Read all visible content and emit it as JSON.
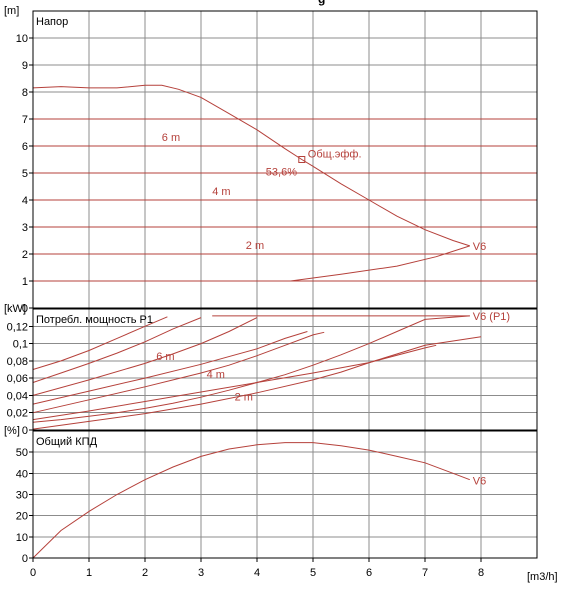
{
  "page": {
    "top_text": "g",
    "x_unit": "[m3/h]",
    "x_ticks": [
      "0",
      "1",
      "2",
      "3",
      "4",
      "5",
      "6",
      "7",
      "8"
    ]
  },
  "colors": {
    "curve": "#b5413b",
    "curve_text": "#b5413b",
    "grid": "#8c8c8c",
    "axis": "#000000",
    "text": "#000000",
    "background": "#ffffff"
  },
  "chart_data": [
    {
      "type": "line",
      "title": "Напор",
      "ylabel": "[m]",
      "xlim": [
        0,
        9
      ],
      "ylim": [
        0,
        11
      ],
      "yticks": [
        "0",
        "1",
        "2",
        "3",
        "4",
        "5",
        "6",
        "7",
        "8",
        "9",
        "10"
      ],
      "series": [
        {
          "name": "V6",
          "x": [
            0,
            0.5,
            1.0,
            1.5,
            2.0,
            2.3,
            2.6,
            3.0,
            3.5,
            4.0,
            4.5,
            4.8,
            5.0,
            5.5,
            6.0,
            6.5,
            7.0,
            7.5,
            7.8
          ],
          "y": [
            8.15,
            8.2,
            8.15,
            8.15,
            8.25,
            8.25,
            8.1,
            7.8,
            7.2,
            6.6,
            5.9,
            5.5,
            5.25,
            4.6,
            4.0,
            3.4,
            2.9,
            2.5,
            2.3
          ]
        },
        {
          "name": "",
          "x": [
            4.6,
            5.5,
            6.5,
            7.2,
            7.8
          ],
          "y": [
            1.0,
            1.25,
            1.55,
            1.9,
            2.3
          ]
        }
      ],
      "const_lines": [
        {
          "label": "6 m",
          "value": 6,
          "label_x": 2.3
        },
        {
          "label": "4 m",
          "value": 4,
          "label_x": 3.2
        },
        {
          "label": "2 m",
          "value": 2,
          "label_x": 3.8
        }
      ],
      "extra_lines": [
        7,
        5,
        3,
        1
      ],
      "curve_label": "V6",
      "point": {
        "x": 4.8,
        "y": 5.5,
        "label": "Общ.эфф.",
        "value_label": "53,6%"
      }
    },
    {
      "type": "line",
      "title": "Потребл. мощность P1",
      "ylabel": "[kW]",
      "xlim": [
        0,
        9
      ],
      "ylim": [
        0,
        0.14
      ],
      "yticks": [
        "0",
        "0,02",
        "0,04",
        "0,06",
        "0,08",
        "0,1",
        "0,12"
      ],
      "curve_label": "V6 (P1)",
      "series": [
        {
          "name": "V6 (P1)",
          "x": [
            0,
            0.5,
            1.0,
            1.5,
            2.0,
            2.5,
            3.0,
            3.5,
            4.0,
            4.5,
            5.0,
            5.5,
            6.0,
            6.5,
            7.0,
            7.8
          ],
          "y": [
            0.009,
            0.012,
            0.016,
            0.02,
            0.025,
            0.031,
            0.038,
            0.046,
            0.055,
            0.064,
            0.075,
            0.087,
            0.1,
            0.114,
            0.128,
            0.132
          ]
        },
        {
          "name": "",
          "x": [
            0,
            1,
            2,
            3,
            4,
            5,
            5.5,
            6.1,
            7.0,
            8.0
          ],
          "y": [
            0.001,
            0.01,
            0.019,
            0.03,
            0.043,
            0.058,
            0.067,
            0.08,
            0.098,
            0.108
          ]
        },
        {
          "name": "",
          "x": [
            0,
            1,
            2,
            3,
            4,
            5,
            6,
            7,
            7.2
          ],
          "y": [
            0.012,
            0.022,
            0.033,
            0.044,
            0.055,
            0.066,
            0.078,
            0.095,
            0.098
          ]
        },
        {
          "name": "",
          "x": [
            0,
            1,
            2,
            3,
            3.5,
            4,
            4.5,
            5.0,
            5.2
          ],
          "y": [
            0.02,
            0.035,
            0.05,
            0.066,
            0.075,
            0.086,
            0.098,
            0.11,
            0.113
          ]
        },
        {
          "name": "",
          "x": [
            0,
            1,
            2,
            3,
            4,
            4.5,
            4.9
          ],
          "y": [
            0.03,
            0.045,
            0.06,
            0.076,
            0.094,
            0.106,
            0.114
          ]
        },
        {
          "name": "",
          "x": [
            0,
            1,
            2,
            2.5,
            3,
            3.5,
            4
          ],
          "y": [
            0.04,
            0.058,
            0.077,
            0.088,
            0.1,
            0.114,
            0.13
          ]
        },
        {
          "name": "",
          "x": [
            0,
            0.5,
            1,
            1.5,
            2,
            2.5,
            3
          ],
          "y": [
            0.055,
            0.066,
            0.077,
            0.089,
            0.102,
            0.117,
            0.13
          ]
        },
        {
          "name": "",
          "x": [
            0,
            0.5,
            1,
            1.5,
            2,
            2.4
          ],
          "y": [
            0.07,
            0.08,
            0.092,
            0.106,
            0.12,
            0.131
          ]
        }
      ],
      "labels": [
        {
          "text": "6 m",
          "x": 2.2,
          "y": 0.081
        },
        {
          "text": "4 m",
          "x": 3.1,
          "y": 0.06
        },
        {
          "text": "2 m",
          "x": 3.6,
          "y": 0.034
        }
      ],
      "cap_line": {
        "y": 0.132,
        "x0": 3.2,
        "x1": 7.8
      }
    },
    {
      "type": "line",
      "title": "Общий КПД",
      "ylabel": "[%]",
      "xlim": [
        0,
        9
      ],
      "ylim": [
        0,
        60
      ],
      "yticks": [
        "0",
        "10",
        "20",
        "30",
        "40",
        "50"
      ],
      "curve_label": "V6",
      "series": [
        {
          "name": "V6",
          "x": [
            0,
            0.5,
            1.0,
            1.5,
            2.0,
            2.5,
            3.0,
            3.5,
            4.0,
            4.5,
            5.0,
            5.5,
            6.0,
            6.5,
            7.0,
            7.5,
            7.8
          ],
          "y": [
            0,
            13,
            22,
            30,
            37,
            43,
            48,
            51.5,
            53.5,
            54.5,
            54.5,
            53,
            51,
            48,
            45,
            40,
            37
          ]
        }
      ]
    }
  ]
}
